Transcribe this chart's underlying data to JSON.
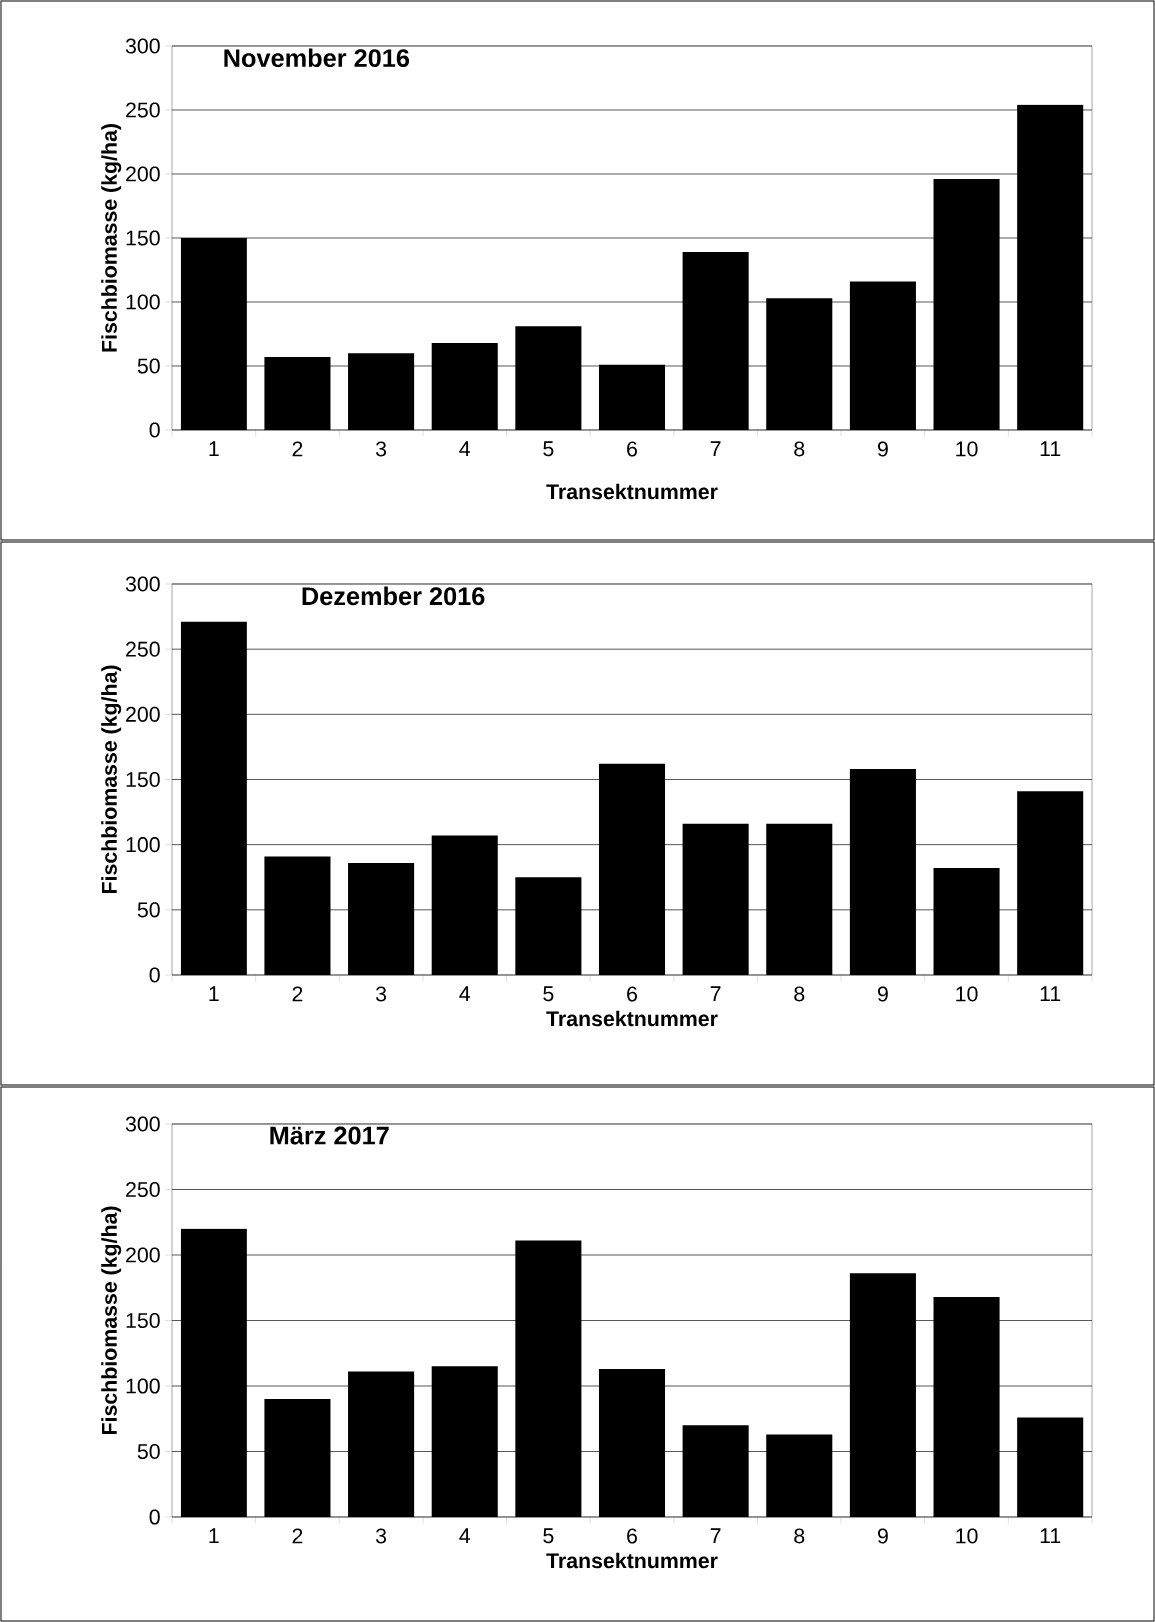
{
  "chart_data": [
    {
      "type": "bar",
      "title": "November 2016",
      "xlabel": "Transektnummer",
      "ylabel": "Fischbiomasse (kg/ha)",
      "categories": [
        "1",
        "2",
        "3",
        "4",
        "5",
        "6",
        "7",
        "8",
        "9",
        "10",
        "11"
      ],
      "values": [
        150,
        57,
        60,
        68,
        81,
        51,
        139,
        103,
        116,
        196,
        254
      ],
      "color": "#000000",
      "ylim": [
        0,
        300
      ],
      "yticks": [
        0,
        50,
        100,
        150,
        200,
        250,
        300
      ],
      "grid": "y"
    },
    {
      "type": "bar",
      "title": "Dezember 2016",
      "xlabel": "Transektnummer",
      "ylabel": "Fischbiomasse (kg/ha)",
      "categories": [
        "1",
        "2",
        "3",
        "4",
        "5",
        "6",
        "7",
        "8",
        "9",
        "10",
        "11"
      ],
      "values": [
        271,
        91,
        86,
        107,
        75,
        162,
        116,
        116,
        158,
        82,
        141
      ],
      "color": "#000000",
      "ylim": [
        0,
        300
      ],
      "yticks": [
        0,
        50,
        100,
        150,
        200,
        250,
        300
      ],
      "grid": "y"
    },
    {
      "type": "bar",
      "title": "März 2017",
      "xlabel": "Transektnummer",
      "ylabel": "Fischbiomasse (kg/ha)",
      "categories": [
        "1",
        "2",
        "3",
        "4",
        "5",
        "6",
        "7",
        "8",
        "9",
        "10",
        "11"
      ],
      "values": [
        220,
        90,
        111,
        115,
        211,
        113,
        70,
        63,
        186,
        168,
        76
      ],
      "color": "#000000",
      "ylim": [
        0,
        300
      ],
      "yticks": [
        0,
        50,
        100,
        150,
        200,
        250,
        300
      ],
      "grid": "y"
    }
  ]
}
